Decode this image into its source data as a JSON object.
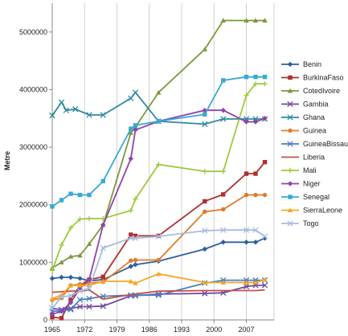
{
  "chart_data": {
    "type": "line",
    "title": "",
    "xlabel": "",
    "ylabel": "Metre",
    "xlim": [
      1965,
      2013
    ],
    "ylim": [
      0,
      5500000
    ],
    "x_ticks": [
      1965,
      1972,
      1979,
      1986,
      1993,
      2000,
      2007
    ],
    "y_ticks": [
      0,
      1000000,
      2000000,
      3000000,
      4000000,
      5000000
    ],
    "grid": "vertical",
    "legend_position": "right",
    "series": [
      {
        "name": "Benin",
        "color": "#2E5E9E",
        "marker": "diamond",
        "points": [
          [
            1965,
            720000
          ],
          [
            1967,
            740000
          ],
          [
            1969,
            740000
          ],
          [
            1971,
            720000
          ],
          [
            1973,
            680000
          ],
          [
            1976,
            700000
          ],
          [
            1982,
            930000
          ],
          [
            1983,
            960000
          ],
          [
            1988,
            1020000
          ],
          [
            1998,
            1230000
          ],
          [
            2002,
            1350000
          ],
          [
            2007,
            1350000
          ],
          [
            2009,
            1350000
          ],
          [
            2011,
            1420000
          ]
        ]
      },
      {
        "name": "BurkinaFaso",
        "color": "#B0302C",
        "marker": "square",
        "points": [
          [
            1965,
            50000
          ],
          [
            1967,
            30000
          ],
          [
            1969,
            350000
          ],
          [
            1971,
            600000
          ],
          [
            1973,
            700000
          ],
          [
            1976,
            750000
          ],
          [
            1982,
            1480000
          ],
          [
            1983,
            1460000
          ],
          [
            1988,
            1460000
          ],
          [
            1998,
            2060000
          ],
          [
            2002,
            2180000
          ],
          [
            2007,
            2540000
          ],
          [
            2009,
            2540000
          ],
          [
            2011,
            2740000
          ]
        ]
      },
      {
        "name": "CotedIvoire",
        "color": "#7A9A3A",
        "marker": "triangle",
        "points": [
          [
            1965,
            900000
          ],
          [
            1967,
            1000000
          ],
          [
            1969,
            1100000
          ],
          [
            1971,
            1120000
          ],
          [
            1973,
            1320000
          ],
          [
            1976,
            1650000
          ],
          [
            1982,
            3250000
          ],
          [
            1983,
            3350000
          ],
          [
            1988,
            3950000
          ],
          [
            1998,
            4700000
          ],
          [
            2002,
            5200000
          ],
          [
            2007,
            5200000
          ],
          [
            2009,
            5200000
          ],
          [
            2011,
            5200000
          ]
        ]
      },
      {
        "name": "Gambia",
        "color": "#6E4A9E",
        "marker": "x",
        "points": [
          [
            1965,
            200000
          ],
          [
            1967,
            180000
          ],
          [
            1969,
            200000
          ],
          [
            1971,
            230000
          ],
          [
            1973,
            230000
          ],
          [
            1976,
            240000
          ],
          [
            1982,
            420000
          ],
          [
            1983,
            420000
          ],
          [
            1988,
            450000
          ],
          [
            1998,
            460000
          ],
          [
            2002,
            470000
          ],
          [
            2007,
            580000
          ],
          [
            2009,
            600000
          ],
          [
            2011,
            600000
          ]
        ]
      },
      {
        "name": "Ghana",
        "color": "#2E8B9E",
        "marker": "x",
        "points": [
          [
            1965,
            3550000
          ],
          [
            1967,
            3780000
          ],
          [
            1968,
            3640000
          ],
          [
            1970,
            3660000
          ],
          [
            1973,
            3560000
          ],
          [
            1976,
            3560000
          ],
          [
            1982,
            3850000
          ],
          [
            1983,
            3950000
          ],
          [
            1988,
            3450000
          ],
          [
            1998,
            3400000
          ],
          [
            2002,
            3490000
          ],
          [
            2007,
            3490000
          ],
          [
            2009,
            3490000
          ],
          [
            2011,
            3490000
          ]
        ]
      },
      {
        "name": "Guinea",
        "color": "#E07B2A",
        "marker": "circle",
        "points": [
          [
            1965,
            350000
          ],
          [
            1967,
            380000
          ],
          [
            1969,
            600000
          ],
          [
            1971,
            620000
          ],
          [
            1973,
            640000
          ],
          [
            1976,
            660000
          ],
          [
            1982,
            1030000
          ],
          [
            1983,
            1040000
          ],
          [
            1988,
            1040000
          ],
          [
            1998,
            1880000
          ],
          [
            2002,
            1920000
          ],
          [
            2007,
            2170000
          ],
          [
            2009,
            2170000
          ],
          [
            2011,
            2170000
          ]
        ]
      },
      {
        "name": "GuineaBissau",
        "color": "#4A7EC0",
        "marker": "x",
        "points": [
          [
            1965,
            150000
          ],
          [
            1967,
            160000
          ],
          [
            1969,
            180000
          ],
          [
            1971,
            350000
          ],
          [
            1973,
            370000
          ],
          [
            1976,
            410000
          ],
          [
            1982,
            430000
          ],
          [
            1983,
            430000
          ],
          [
            1988,
            430000
          ],
          [
            1998,
            640000
          ],
          [
            2002,
            690000
          ],
          [
            2007,
            690000
          ],
          [
            2009,
            690000
          ],
          [
            2011,
            690000
          ]
        ]
      },
      {
        "name": "Liberia",
        "color": "#C0504D",
        "marker": "none",
        "points": [
          [
            1965,
            480000
          ],
          [
            1967,
            490000
          ],
          [
            1969,
            500000
          ],
          [
            1971,
            500000
          ],
          [
            1973,
            520000
          ],
          [
            1976,
            360000
          ],
          [
            1982,
            440000
          ],
          [
            1983,
            450000
          ],
          [
            1988,
            500000
          ],
          [
            1998,
            510000
          ],
          [
            2002,
            510000
          ],
          [
            2007,
            510000
          ],
          [
            2009,
            510000
          ],
          [
            2011,
            520000
          ]
        ]
      },
      {
        "name": "Mali",
        "color": "#9BCB3C",
        "marker": "plus",
        "points": [
          [
            1965,
            860000
          ],
          [
            1967,
            1300000
          ],
          [
            1969,
            1600000
          ],
          [
            1971,
            1750000
          ],
          [
            1973,
            1760000
          ],
          [
            1976,
            1760000
          ],
          [
            1982,
            1900000
          ],
          [
            1983,
            2100000
          ],
          [
            1988,
            2700000
          ],
          [
            1998,
            2580000
          ],
          [
            2002,
            2580000
          ],
          [
            2007,
            3900000
          ],
          [
            2009,
            4100000
          ],
          [
            2011,
            4100000
          ]
        ]
      },
      {
        "name": "Niger",
        "color": "#8E44AD",
        "marker": "diamond",
        "points": [
          [
            1965,
            100000
          ],
          [
            1967,
            150000
          ],
          [
            1969,
            300000
          ],
          [
            1971,
            550000
          ],
          [
            1973,
            700000
          ],
          [
            1976,
            1650000
          ],
          [
            1982,
            2800000
          ],
          [
            1983,
            3300000
          ],
          [
            1988,
            3450000
          ],
          [
            1998,
            3640000
          ],
          [
            2002,
            3640000
          ],
          [
            2007,
            3440000
          ],
          [
            2009,
            3440000
          ],
          [
            2011,
            3500000
          ]
        ]
      },
      {
        "name": "Senegal",
        "color": "#38A9D4",
        "marker": "square",
        "points": [
          [
            1965,
            1970000
          ],
          [
            1967,
            2080000
          ],
          [
            1969,
            2190000
          ],
          [
            1971,
            2170000
          ],
          [
            1973,
            2170000
          ],
          [
            1976,
            2410000
          ],
          [
            1982,
            3320000
          ],
          [
            1983,
            3380000
          ],
          [
            1988,
            3450000
          ],
          [
            1998,
            3570000
          ],
          [
            2002,
            4160000
          ],
          [
            2007,
            4220000
          ],
          [
            2009,
            4220000
          ],
          [
            2011,
            4220000
          ]
        ]
      },
      {
        "name": "SierraLeone",
        "color": "#F5A623",
        "marker": "triangle",
        "points": [
          [
            1965,
            370000
          ],
          [
            1967,
            430000
          ],
          [
            1969,
            600000
          ],
          [
            1971,
            600000
          ],
          [
            1973,
            600000
          ],
          [
            1976,
            670000
          ],
          [
            1982,
            670000
          ],
          [
            1983,
            640000
          ],
          [
            1988,
            800000
          ],
          [
            1998,
            650000
          ],
          [
            2002,
            650000
          ],
          [
            2007,
            650000
          ],
          [
            2009,
            650000
          ],
          [
            2011,
            700000
          ]
        ]
      },
      {
        "name": "Togo",
        "color": "#A7BCE0",
        "marker": "x",
        "points": [
          [
            1965,
            200000
          ],
          [
            1967,
            400000
          ],
          [
            1969,
            420000
          ],
          [
            1971,
            500000
          ],
          [
            1973,
            550000
          ],
          [
            1976,
            1250000
          ],
          [
            1982,
            1420000
          ],
          [
            1983,
            1420000
          ],
          [
            1988,
            1450000
          ],
          [
            1998,
            1550000
          ],
          [
            2002,
            1560000
          ],
          [
            2007,
            1560000
          ],
          [
            2009,
            1560000
          ],
          [
            2011,
            1450000
          ]
        ]
      }
    ]
  }
}
